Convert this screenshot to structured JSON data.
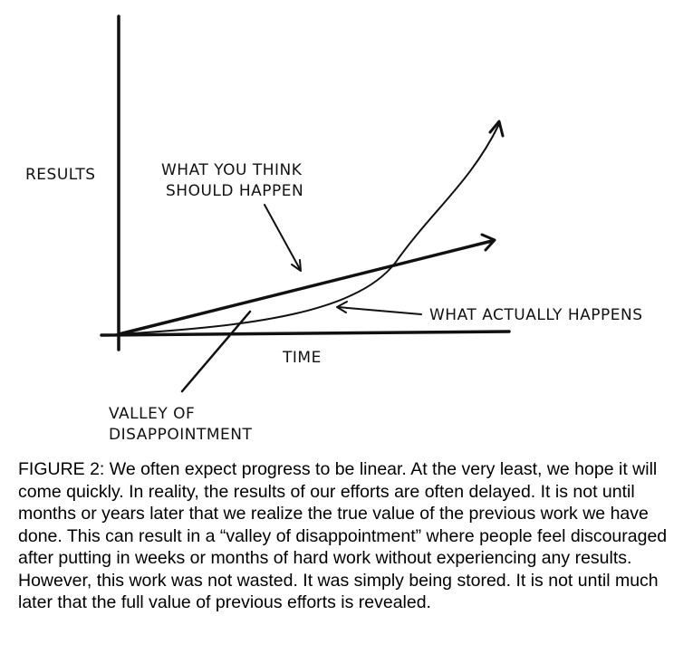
{
  "diagram": {
    "y_axis_label": "RESULTS",
    "x_axis_label": "TIME",
    "expected_label_line1": "WHAT YOU THINK",
    "expected_label_line2": "SHOULD HAPPEN",
    "actual_label": "WHAT ACTUALLY HAPPENS",
    "valley_label_line1": "VALLEY OF",
    "valley_label_line2": "DISAPPOINTMENT"
  },
  "caption": "FIGURE 2: We often expect progress to be linear. At the very least, we hope it will come quickly. In reality, the results of our efforts are often delayed. It is not until months or years later that we realize the true value of the previous work we have done. This can result in a “valley of disappointment” where people feel discouraged after putting in weeks or months of hard work without experiencing any results. However, this work was not wasted. It was simply being stored. It is not until much later that the full value of previous efforts is revealed."
}
